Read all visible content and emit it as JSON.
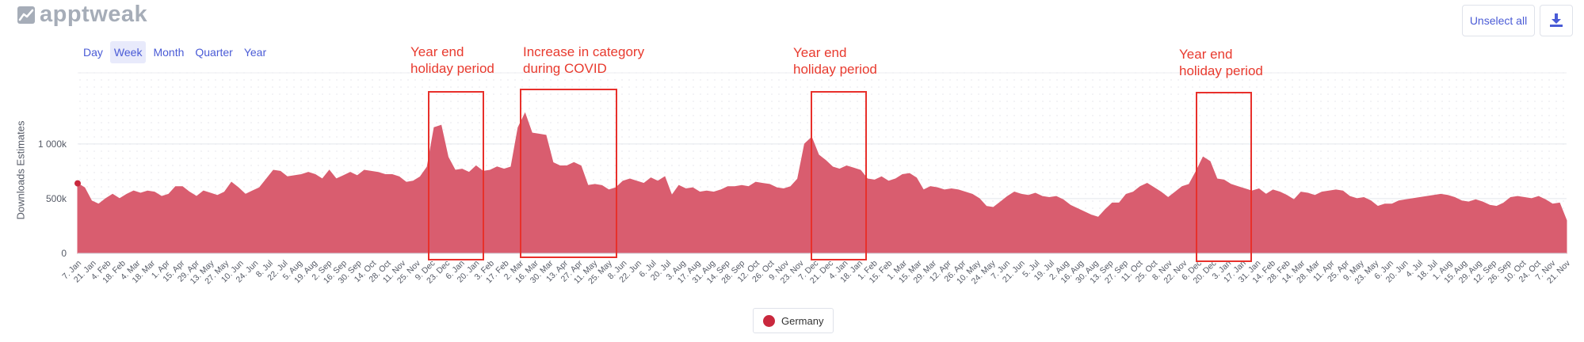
{
  "brand": {
    "name": "apptweak"
  },
  "period_options": [
    "Day",
    "Week",
    "Month",
    "Quarter",
    "Year"
  ],
  "period_selected": "Week",
  "toolbar": {
    "unselect_label": "Unselect all",
    "download_icon": "download-icon"
  },
  "annotations": [
    {
      "line1": "Year end",
      "line2": "holiday period"
    },
    {
      "line1": "Increase in category",
      "line2": "during COVID"
    },
    {
      "line1": "Year end",
      "line2": "holiday period"
    },
    {
      "line1": "Year end",
      "line2": "holiday period"
    }
  ],
  "chart_data": {
    "type": "area",
    "ylabel": "Downloads Estimates",
    "ylim": [
      0,
      1650000
    ],
    "yticks": [
      0,
      500000,
      1000000
    ],
    "ytick_labels": [
      "0",
      "500k",
      "1 000k"
    ],
    "grid": true,
    "legend_position": "bottom-center",
    "color": "#d95d6f",
    "series": [
      {
        "name": "Germany",
        "values": [
          640000,
          600000,
          480000,
          450000,
          500000,
          540000,
          500000,
          540000,
          570000,
          550000,
          570000,
          560000,
          520000,
          540000,
          610000,
          610000,
          560000,
          520000,
          570000,
          550000,
          530000,
          560000,
          650000,
          600000,
          540000,
          570000,
          600000,
          680000,
          760000,
          750000,
          700000,
          710000,
          720000,
          740000,
          720000,
          680000,
          760000,
          680000,
          710000,
          740000,
          710000,
          760000,
          750000,
          740000,
          720000,
          720000,
          700000,
          650000,
          660000,
          700000,
          790000,
          1150000,
          1170000,
          880000,
          760000,
          770000,
          740000,
          800000,
          750000,
          760000,
          790000,
          770000,
          790000,
          1150000,
          1280000,
          1100000,
          1090000,
          1080000,
          830000,
          800000,
          800000,
          830000,
          800000,
          620000,
          630000,
          620000,
          580000,
          600000,
          660000,
          680000,
          660000,
          640000,
          690000,
          660000,
          700000,
          530000,
          620000,
          590000,
          600000,
          560000,
          570000,
          560000,
          580000,
          610000,
          610000,
          620000,
          610000,
          650000,
          640000,
          630000,
          600000,
          590000,
          610000,
          680000,
          1000000,
          1060000,
          900000,
          850000,
          790000,
          770000,
          800000,
          780000,
          760000,
          680000,
          670000,
          700000,
          660000,
          680000,
          720000,
          730000,
          690000,
          580000,
          610000,
          600000,
          580000,
          590000,
          580000,
          560000,
          540000,
          500000,
          430000,
          420000,
          470000,
          520000,
          560000,
          540000,
          530000,
          550000,
          520000,
          510000,
          520000,
          490000,
          440000,
          410000,
          380000,
          350000,
          330000,
          400000,
          460000,
          460000,
          540000,
          560000,
          610000,
          640000,
          600000,
          560000,
          510000,
          560000,
          610000,
          630000,
          750000,
          880000,
          840000,
          680000,
          670000,
          630000,
          610000,
          590000,
          570000,
          590000,
          540000,
          580000,
          560000,
          530000,
          490000,
          560000,
          550000,
          530000,
          560000,
          570000,
          580000,
          570000,
          520000,
          500000,
          510000,
          480000,
          430000,
          450000,
          450000,
          480000,
          490000,
          500000,
          510000,
          520000,
          530000,
          540000,
          530000,
          510000,
          480000,
          470000,
          490000,
          470000,
          440000,
          430000,
          460000,
          510000,
          520000,
          510000,
          500000,
          520000,
          490000,
          450000,
          460000,
          300000
        ]
      }
    ],
    "x_tick_labels": [
      "7. Jan",
      "21. Jan",
      "4. Feb",
      "18. Feb",
      "4. Mar",
      "18. Mar",
      "1. Apr",
      "15. Apr",
      "29. Apr",
      "13. May",
      "27. May",
      "10. Jun",
      "24. Jun",
      "8. Jul",
      "22. Jul",
      "5. Aug",
      "19. Aug",
      "2. Sep",
      "16. Sep",
      "30. Sep",
      "14. Oct",
      "28. Oct",
      "11. Nov",
      "25. Nov",
      "9. Dec",
      "23. Dec",
      "6. Jan",
      "20. Jan",
      "3. Feb",
      "17. Feb",
      "2. Mar",
      "16. Mar",
      "30. Mar",
      "13. Apr",
      "27. Apr",
      "11. May",
      "25. May",
      "8. Jun",
      "22. Jun",
      "6. Jul",
      "20. Jul",
      "3. Aug",
      "17. Aug",
      "31. Aug",
      "14. Sep",
      "28. Sep",
      "12. Oct",
      "26. Oct",
      "9. Nov",
      "23. Nov",
      "7. Dec",
      "21. Dec",
      "4. Jan",
      "18. Jan",
      "1. Feb",
      "15. Feb",
      "1. Mar",
      "15. Mar",
      "29. Mar",
      "12. Apr",
      "26. Apr",
      "10. May",
      "24. May",
      "7. Jun",
      "21. Jun",
      "5. Jul",
      "19. Jul",
      "2. Aug",
      "16. Aug",
      "30. Aug",
      "13. Sep",
      "27. Sep",
      "11. Oct",
      "25. Oct",
      "8. Nov",
      "22. Nov",
      "6. Dec",
      "20. Dec",
      "3. Jan",
      "17. Jan",
      "31. Jan",
      "14. Feb",
      "28. Feb",
      "14. Mar",
      "28. Mar",
      "11. Apr",
      "25. Apr",
      "9. May",
      "23. May",
      "6. Jun",
      "20. Jun",
      "4. Jul",
      "18. Jul",
      "1. Aug",
      "15. Aug",
      "29. Aug",
      "12. Sep",
      "26. Sep",
      "10. Oct",
      "24. Oct",
      "7. Nov",
      "21. Nov"
    ]
  }
}
